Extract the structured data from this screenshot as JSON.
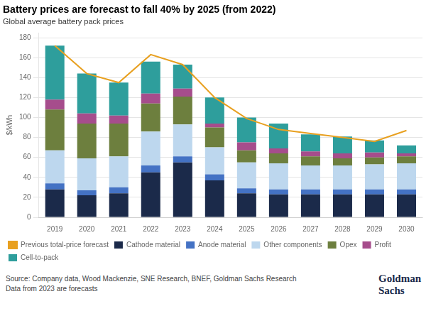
{
  "chart_data": {
    "type": "bar",
    "title": "Battery prices are forecast to fall 40% by 2025 (from 2022)",
    "subtitle": "Global average battery pack prices",
    "ylabel": "$/kWh",
    "categories": [
      "2019",
      "2020",
      "2021",
      "2022",
      "2023",
      "2024",
      "2025",
      "2026",
      "2027",
      "2028",
      "2029",
      "2030"
    ],
    "series": [
      {
        "name": "Previous total-price forecast",
        "type": "line",
        "color": "#e8a020",
        "values": [
          172,
          144,
          135,
          163,
          153,
          120,
          99,
          88,
          84,
          80,
          76,
          87
        ]
      },
      {
        "name": "Cathode material",
        "type": "bar",
        "color": "#1b2a4a",
        "values": [
          28,
          22,
          24,
          45,
          55,
          37,
          24,
          23,
          23,
          23,
          23,
          23
        ]
      },
      {
        "name": "Anode material",
        "type": "bar",
        "color": "#4472c4",
        "values": [
          6,
          5,
          6,
          7,
          6,
          6,
          5,
          5,
          5,
          5,
          5,
          5
        ]
      },
      {
        "name": "Other components",
        "type": "bar",
        "color": "#bdd7ee",
        "values": [
          33,
          32,
          31,
          34,
          32,
          27,
          26,
          26,
          24,
          24,
          25,
          26
        ]
      },
      {
        "name": "Opex",
        "type": "bar",
        "color": "#6d7f3e",
        "values": [
          41,
          35,
          33,
          28,
          28,
          20,
          12,
          10,
          9,
          7,
          7,
          7
        ]
      },
      {
        "name": "Profit",
        "type": "bar",
        "color": "#a64d8c",
        "values": [
          10,
          10,
          8,
          10,
          8,
          4,
          8,
          5,
          5,
          5,
          5,
          3
        ]
      },
      {
        "name": "Cell-to-pack",
        "type": "bar",
        "color": "#2e9e9c",
        "values": [
          54,
          40,
          33,
          32,
          24,
          26,
          25,
          25,
          17,
          17,
          12,
          8
        ]
      }
    ],
    "stacked": true,
    "ylim": [
      0,
      185
    ],
    "yticks": [
      0,
      20,
      40,
      60,
      80,
      100,
      120,
      140,
      160,
      180
    ],
    "grid": true,
    "legend": "bottom",
    "source": "Source: Company data, Wood Mackenzie, SNE Research, BNEF, Goldman Sachs Research\nData from 2023 are forecasts",
    "annotations": [
      "Goldman\nSachs"
    ]
  }
}
